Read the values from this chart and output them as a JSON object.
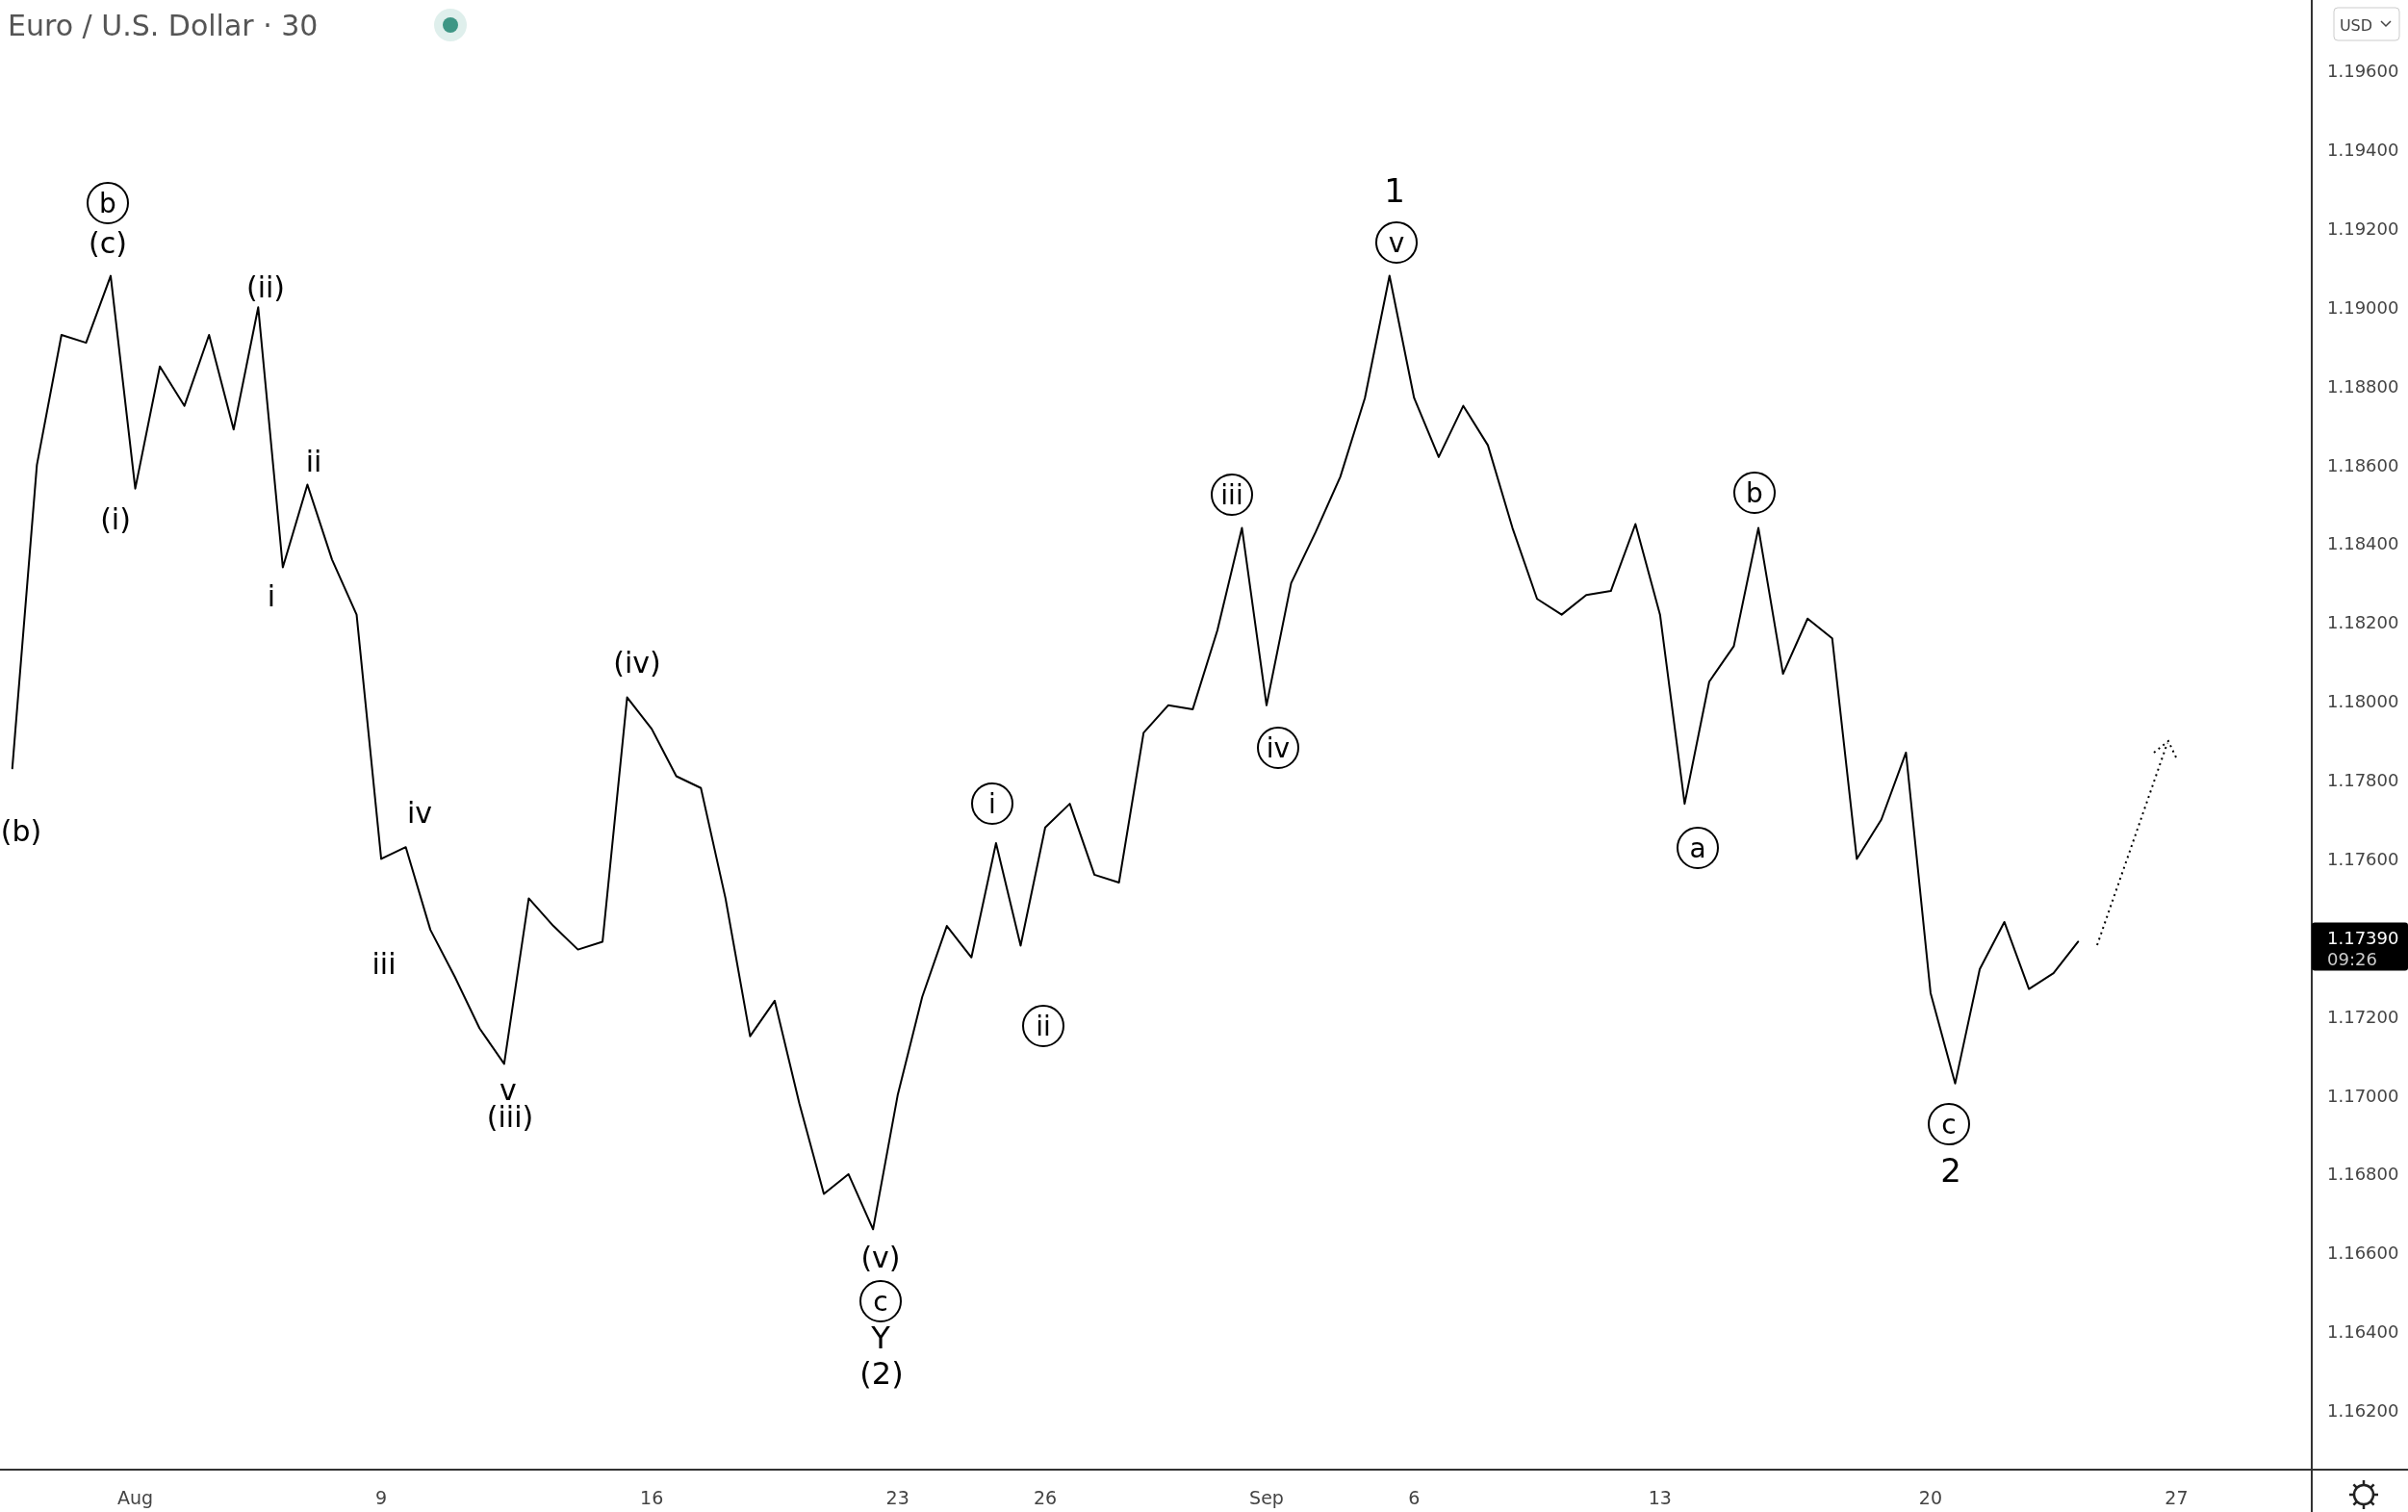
{
  "chart_data": {
    "type": "line",
    "title": "Euro / U.S. Dollar · 30",
    "categories": [
      null,
      null,
      null,
      null,
      null,
      "Aug",
      null,
      null,
      null,
      null,
      null,
      null,
      null,
      null,
      null,
      "9",
      null,
      null,
      null,
      null,
      null,
      null,
      null,
      null,
      null,
      null,
      "16",
      null,
      null,
      null,
      null,
      null,
      null,
      null,
      null,
      null,
      "23",
      null,
      null,
      null,
      null,
      null,
      "26",
      null,
      null,
      null,
      null,
      null,
      null,
      null,
      null,
      "Sep",
      null,
      null,
      null,
      null,
      null,
      "6",
      null,
      null,
      null,
      null,
      null,
      null,
      null,
      null,
      null,
      "13",
      null,
      null,
      null,
      null,
      null,
      null,
      null,
      null,
      null,
      null,
      "20",
      null,
      null,
      null,
      null,
      null,
      null,
      null,
      null,
      null,
      "27",
      null,
      null,
      null,
      null,
      null
    ],
    "series": [
      {
        "color": "#000000",
        "values": [
          1.1783,
          1.186,
          1.1893,
          1.1891,
          1.1908,
          1.1854,
          1.1885,
          1.1875,
          1.1893,
          1.1869,
          1.19,
          1.1834,
          1.1855,
          1.1836,
          1.1822,
          1.176,
          1.1763,
          1.1742,
          1.173,
          1.1717,
          1.1708,
          1.175,
          1.1743,
          1.1737,
          1.1739,
          1.1801,
          1.1793,
          1.1781,
          1.1778,
          1.175,
          1.1715,
          1.1724,
          1.1698,
          1.1675,
          1.168,
          1.1666,
          1.17,
          1.1725,
          1.1743,
          1.1735,
          1.1764,
          1.1738,
          1.1768,
          1.1774,
          1.1756,
          1.1754,
          1.1792,
          1.1799,
          1.1798,
          1.1818,
          1.1844,
          1.1799,
          1.183,
          1.1843,
          1.1857,
          1.1877,
          1.1908,
          1.1877,
          1.1862,
          1.1875,
          1.1865,
          1.1844,
          1.1826,
          1.1822,
          1.1827,
          1.1828,
          1.1845,
          1.1822,
          1.1774,
          1.1805,
          1.1814,
          1.1844,
          1.1807,
          1.1821,
          1.1816,
          1.176,
          1.177,
          1.1787,
          1.1726,
          1.1703,
          1.1732,
          1.1744,
          1.1727,
          1.1731,
          1.1739,
          null,
          null,
          null,
          null,
          null,
          null,
          null,
          null,
          null
        ]
      }
    ],
    "ylim": [
      1.1605,
      1.1978
    ],
    "yticks": [
      {
        "value": 1.162,
        "label": "1.16200"
      },
      {
        "value": 1.164,
        "label": "1.16400"
      },
      {
        "value": 1.166,
        "label": "1.16600"
      },
      {
        "value": 1.168,
        "label": "1.16800"
      },
      {
        "value": 1.17,
        "label": "1.17000"
      },
      {
        "value": 1.172,
        "label": "1.17200"
      },
      {
        "value": 1.176,
        "label": "1.17600"
      },
      {
        "value": 1.178,
        "label": "1.17800"
      },
      {
        "value": 1.18,
        "label": "1.18000"
      },
      {
        "value": 1.182,
        "label": "1.18200"
      },
      {
        "value": 1.184,
        "label": "1.18400"
      },
      {
        "value": 1.186,
        "label": "1.18600"
      },
      {
        "value": 1.188,
        "label": "1.18800"
      },
      {
        "value": 1.19,
        "label": "1.19000"
      },
      {
        "value": 1.192,
        "label": "1.19200"
      },
      {
        "value": 1.194,
        "label": "1.19400"
      },
      {
        "value": 1.196,
        "label": "1.19600"
      }
    ],
    "annotations": [
      "b",
      "(c)",
      "(ii)",
      "ii",
      "(i)",
      "i",
      "(b)",
      "iv",
      "iii",
      "v",
      "(iii)",
      "(iv)",
      "(v)",
      "c",
      "Y",
      "(2)",
      "i",
      "ii",
      "iii",
      "iv",
      "1",
      "v",
      "a",
      "b",
      "c",
      "2",
      "1.17390",
      "09:26",
      "USD"
    ]
  }
}
